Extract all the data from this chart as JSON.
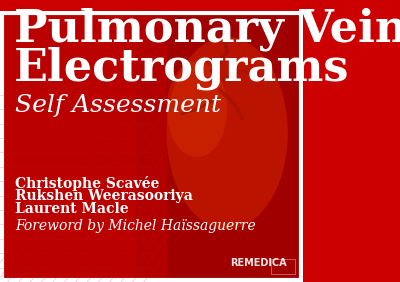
{
  "bg_color": "#cc0000",
  "bg_color_dark": "#990000",
  "title_line1": "Pulmonary Vein",
  "title_line2": "Electrograms",
  "subtitle": "Self Assessment",
  "authors": [
    "Christophe Scavée",
    "Rukshen Weerasooriya",
    "Laurent Macle"
  ],
  "foreword": "Foreword by Michel Haïssaguerre",
  "publisher": "REMEDICA",
  "title_color": "#ffffff",
  "subtitle_color": "#ffffff",
  "author_color": "#ffffff",
  "foreword_color": "#ffffff",
  "publisher_color": "#ffffff",
  "title_fontsize": 32,
  "subtitle_fontsize": 18,
  "author_fontsize": 10,
  "foreword_fontsize": 10,
  "publisher_fontsize": 7,
  "border_color": "#ffffff",
  "border_width": 3
}
